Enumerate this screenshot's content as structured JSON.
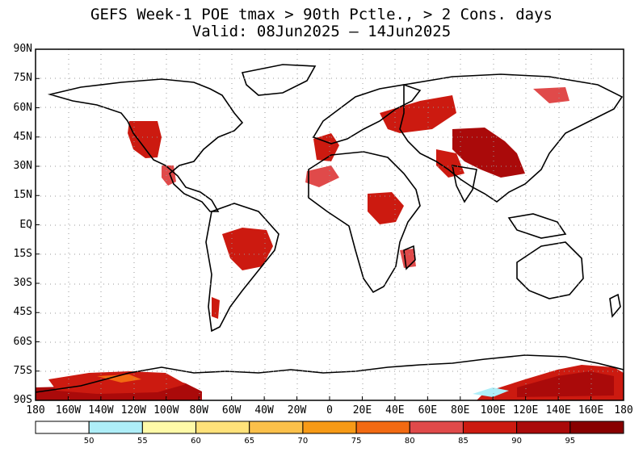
{
  "title_line1": "GEFS Week-1 POE tmax > 90th Pctle., > 2 Cons. days",
  "title_line2": "Valid: 08Jun2025 — 14Jun2025",
  "lat_labels": [
    "90N",
    "75N",
    "60N",
    "45N",
    "30N",
    "15N",
    "EQ",
    "15S",
    "30S",
    "45S",
    "60S",
    "75S",
    "90S"
  ],
  "lon_labels": [
    "180",
    "160W",
    "140W",
    "120W",
    "100W",
    "80W",
    "60W",
    "40W",
    "20W",
    "0",
    "20E",
    "40E",
    "60E",
    "80E",
    "100E",
    "120E",
    "140E",
    "160E",
    "180"
  ],
  "colorbar": {
    "thresholds": [
      50,
      55,
      60,
      65,
      70,
      75,
      80,
      85,
      90,
      95
    ],
    "colors": [
      "#ffffff",
      "#aeeef8",
      "#fffaa8",
      "#ffe27a",
      "#fbc04a",
      "#f79a16",
      "#f26a12",
      "#e04a4a",
      "#cc1a10",
      "#aa0a0a",
      "#880000"
    ]
  },
  "colors": {
    "land_border": "#000000",
    "grid": "#9a9a9a"
  }
}
